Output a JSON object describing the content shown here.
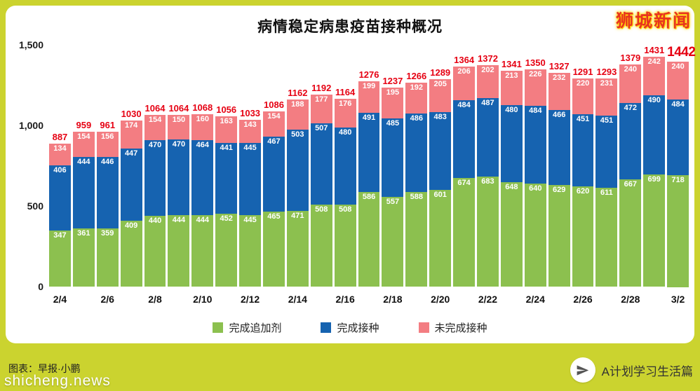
{
  "page": {
    "brand": "狮城新闻",
    "watermark": "shicheng.news",
    "credit": "图表：早报·小鹏",
    "footer": "A计划学习生活篇",
    "background": "#cbd32f"
  },
  "chart_data": {
    "type": "bar",
    "stacked": true,
    "title": "病情稳定病患疫苗接种概况",
    "xlabel": "",
    "ylabel": "",
    "ylim": [
      0,
      1500
    ],
    "ytick_values": [
      0,
      500,
      1000,
      1500
    ],
    "ytick_labels": [
      "0",
      "500",
      "1,000",
      "1,500"
    ],
    "grid": false,
    "legend_position": "bottom",
    "categories": [
      "2/4",
      "2/5",
      "2/6",
      "2/7",
      "2/8",
      "2/9",
      "2/10",
      "2/11",
      "2/12",
      "2/13",
      "2/14",
      "2/15",
      "2/16",
      "2/17",
      "2/18",
      "2/19",
      "2/20",
      "2/21",
      "2/22",
      "2/23",
      "2/24",
      "2/25",
      "2/26",
      "2/27",
      "2/28",
      "3/1",
      "3/2"
    ],
    "x_tick_shown": [
      "2/4",
      "2/6",
      "2/8",
      "2/10",
      "2/12",
      "2/14",
      "2/16",
      "2/18",
      "2/20",
      "2/22",
      "2/24",
      "2/26",
      "2/28",
      "3/2"
    ],
    "series": [
      {
        "name": "完成追加剂",
        "color": "#8cc04f",
        "values": [
          347,
          361,
          359,
          409,
          440,
          444,
          444,
          452,
          445,
          465,
          471,
          508,
          508,
          586,
          557,
          588,
          601,
          674,
          683,
          648,
          640,
          629,
          620,
          611,
          667,
          699,
          718
        ]
      },
      {
        "name": "完成接种",
        "color": "#1663b0",
        "values": [
          406,
          444,
          446,
          447,
          470,
          470,
          464,
          441,
          445,
          467,
          503,
          507,
          480,
          491,
          485,
          486,
          483,
          484,
          487,
          480,
          484,
          466,
          451,
          451,
          472,
          490,
          484
        ]
      },
      {
        "name": "未完成接种",
        "color": "#f37d82",
        "values": [
          134,
          154,
          156,
          174,
          154,
          150,
          160,
          163,
          143,
          154,
          188,
          177,
          176,
          199,
          195,
          192,
          205,
          206,
          202,
          213,
          226,
          232,
          220,
          231,
          240,
          242,
          240
        ]
      }
    ],
    "totals": [
      887,
      959,
      961,
      1030,
      1064,
      1064,
      1068,
      1056,
      1033,
      1086,
      1162,
      1192,
      1164,
      1276,
      1237,
      1266,
      1289,
      1364,
      1372,
      1341,
      1350,
      1327,
      1291,
      1293,
      1379,
      1431,
      1442
    ],
    "total_color": "#e60012"
  }
}
